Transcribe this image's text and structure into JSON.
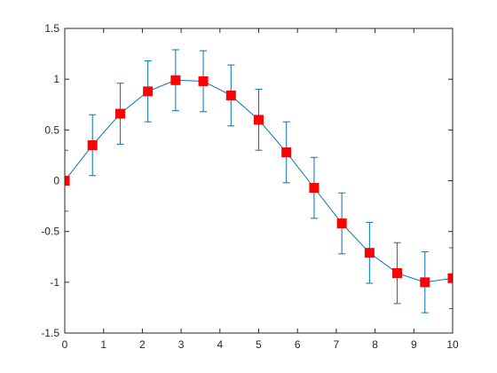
{
  "chart_data": {
    "type": "line",
    "title": "",
    "xlabel": "",
    "ylabel": "",
    "xlim": [
      0,
      10
    ],
    "ylim": [
      -1.5,
      1.5
    ],
    "grid": false,
    "legend": "none",
    "x_ticks": [
      0,
      1,
      2,
      3,
      4,
      5,
      6,
      7,
      8,
      9,
      10
    ],
    "y_ticks": [
      1.5,
      1,
      0.5,
      0,
      -0.5,
      -1,
      -1.5
    ],
    "x_tick_labels": [
      "0",
      "1",
      "2",
      "3",
      "4",
      "5",
      "6",
      "7",
      "8",
      "9",
      "10"
    ],
    "y_tick_labels": [
      "1.5",
      "1",
      "0.5",
      "0",
      "-0.5",
      "-1",
      "-1.5"
    ],
    "series": [
      {
        "x": [
          0,
          0.714,
          1.429,
          2.143,
          2.857,
          3.571,
          4.286,
          5.0,
          5.714,
          6.429,
          7.143,
          7.857,
          8.571,
          9.286,
          10.0
        ],
        "y": [
          0,
          0.35,
          0.66,
          0.88,
          0.99,
          0.98,
          0.84,
          0.6,
          0.28,
          -0.07,
          -0.42,
          -0.71,
          -0.91,
          -1.0,
          -0.96
        ],
        "error": [
          0.3,
          0.3,
          0.3,
          0.3,
          0.3,
          0.3,
          0.3,
          0.3,
          0.3,
          0.3,
          0.3,
          0.3,
          0.3,
          0.3,
          0.3
        ],
        "line_color": "#0072BD",
        "marker": "square",
        "marker_color": "#FF0000"
      }
    ]
  }
}
